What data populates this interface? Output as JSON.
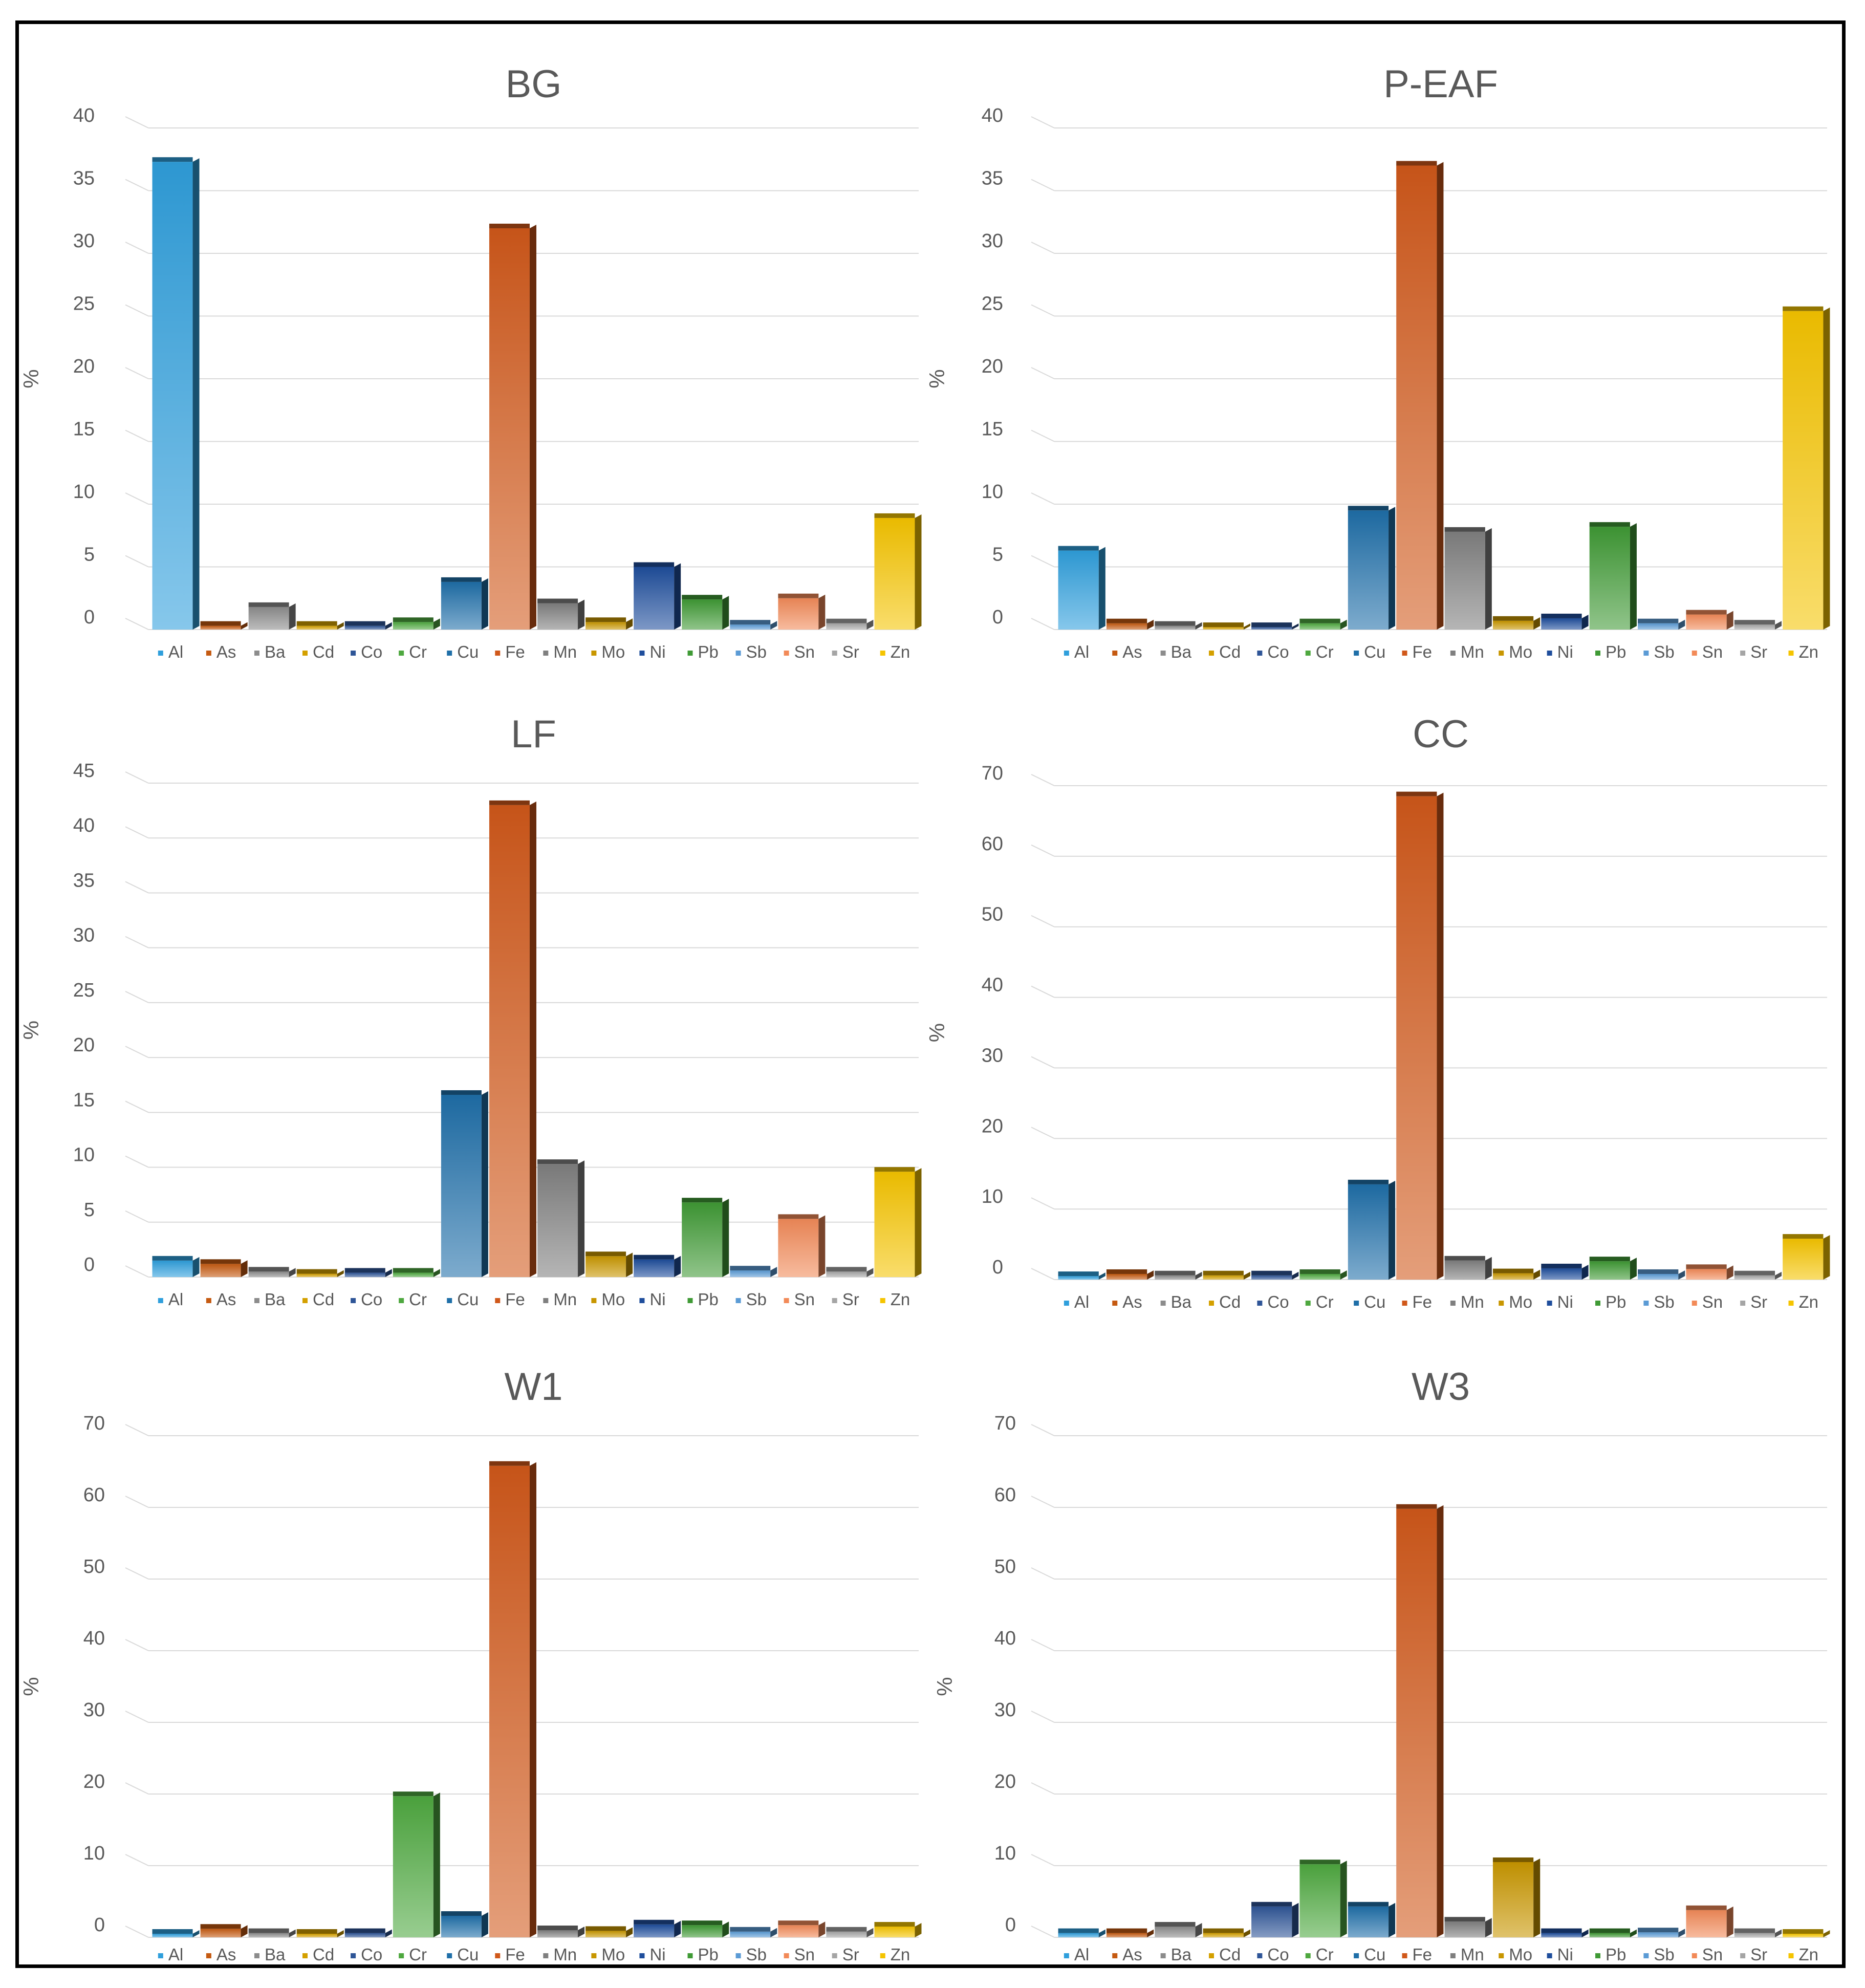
{
  "chart_data": [
    {
      "type": "bar",
      "title": "BG",
      "xlabel": "",
      "ylabel": "%",
      "ylim": [
        0,
        40
      ],
      "yticks": [
        0,
        5,
        10,
        15,
        20,
        25,
        30,
        35,
        40
      ],
      "categories": [
        "Al",
        "As",
        "Ba",
        "Cd",
        "Co",
        "Cr",
        "Cu",
        "Fe",
        "Mn",
        "Mo",
        "Ni",
        "Pb",
        "Sb",
        "Sn",
        "Sr",
        "Zn"
      ],
      "values": [
        37.3,
        0.3,
        1.8,
        0.3,
        0.3,
        0.6,
        3.8,
        32.0,
        2.1,
        0.6,
        5.0,
        2.4,
        0.4,
        2.5,
        0.5,
        8.9
      ],
      "legend": "bottom",
      "grid": true
    },
    {
      "type": "bar",
      "title": "P-EAF",
      "xlabel": "",
      "ylabel": "%",
      "ylim": [
        0,
        40
      ],
      "yticks": [
        0,
        5,
        10,
        15,
        20,
        25,
        30,
        35,
        40
      ],
      "categories": [
        "Al",
        "As",
        "Ba",
        "Cd",
        "Co",
        "Cr",
        "Cu",
        "Fe",
        "Mn",
        "Mo",
        "Ni",
        "Pb",
        "Sb",
        "Sn",
        "Sr",
        "Zn"
      ],
      "values": [
        6.3,
        0.5,
        0.3,
        0.2,
        0.2,
        0.5,
        9.5,
        37.0,
        7.8,
        0.7,
        0.9,
        8.2,
        0.5,
        1.2,
        0.4,
        25.4
      ],
      "legend": "bottom",
      "grid": true
    },
    {
      "type": "bar",
      "title": "LF",
      "xlabel": "",
      "ylabel": "%",
      "ylim": [
        0,
        45
      ],
      "yticks": [
        0,
        5,
        10,
        15,
        20,
        25,
        30,
        35,
        40,
        45
      ],
      "categories": [
        "Al",
        "As",
        "Ba",
        "Cd",
        "Co",
        "Cr",
        "Cu",
        "Fe",
        "Mn",
        "Mo",
        "Ni",
        "Pb",
        "Sb",
        "Sn",
        "Sr",
        "Zn"
      ],
      "values": [
        1.5,
        1.2,
        0.5,
        0.3,
        0.4,
        0.4,
        16.6,
        43.0,
        10.3,
        1.9,
        1.6,
        6.8,
        0.6,
        5.3,
        0.5,
        9.6
      ],
      "legend": "bottom",
      "grid": true
    },
    {
      "type": "bar",
      "title": "CC",
      "xlabel": "",
      "ylabel": "%",
      "ylim": [
        0,
        70
      ],
      "yticks": [
        0,
        10,
        20,
        30,
        40,
        50,
        60,
        70
      ],
      "categories": [
        "Al",
        "As",
        "Ba",
        "Cd",
        "Co",
        "Cr",
        "Cu",
        "Fe",
        "Mn",
        "Mo",
        "Ni",
        "Pb",
        "Sb",
        "Sn",
        "Sr",
        "Zn"
      ],
      "values": [
        0.5,
        0.8,
        0.6,
        0.6,
        0.6,
        0.8,
        13.5,
        68.5,
        2.7,
        0.9,
        1.6,
        2.6,
        0.8,
        1.5,
        0.6,
        5.8
      ],
      "legend": "bottom",
      "grid": true
    },
    {
      "type": "bar",
      "title": "W1",
      "xlabel": "",
      "ylabel": "%",
      "ylim": [
        0,
        70
      ],
      "yticks": [
        0,
        10,
        20,
        30,
        40,
        50,
        60,
        70
      ],
      "categories": [
        "Al",
        "As",
        "Ba",
        "Cd",
        "Co",
        "Cr",
        "Cu",
        "Fe",
        "Mn",
        "Mo",
        "Ni",
        "Pb",
        "Sb",
        "Sn",
        "Sr",
        "Zn"
      ],
      "values": [
        0.5,
        1.2,
        0.6,
        0.5,
        0.6,
        19.7,
        3.0,
        65.8,
        1.0,
        0.9,
        1.8,
        1.7,
        0.8,
        1.7,
        0.8,
        1.5
      ],
      "legend": "bottom",
      "grid": true
    },
    {
      "type": "bar",
      "title": "W3",
      "xlabel": "",
      "ylabel": "%",
      "ylim": [
        0,
        70
      ],
      "yticks": [
        0,
        10,
        20,
        30,
        40,
        50,
        60,
        70
      ],
      "categories": [
        "Al",
        "As",
        "Ba",
        "Cd",
        "Co",
        "Cr",
        "Cu",
        "Fe",
        "Mn",
        "Mo",
        "Ni",
        "Pb",
        "Sb",
        "Sn",
        "Sr",
        "Zn"
      ],
      "values": [
        0.6,
        0.6,
        1.5,
        0.6,
        4.3,
        10.2,
        4.3,
        59.8,
        2.2,
        10.5,
        0.6,
        0.6,
        0.7,
        3.8,
        0.6,
        0.5
      ],
      "legend": "bottom",
      "grid": true
    }
  ],
  "colors": {
    "Al": "#2f9fdc",
    "As": "#c55a11",
    "Ba": "#8c8c8c",
    "Cd": "#d4a000",
    "Co": "#2e5597",
    "Cr": "#4ea83f",
    "Cu": "#1f6fa8",
    "Fe": "#d0581a",
    "Mn": "#7f7f7f",
    "Mo": "#c89600",
    "Ni": "#1f4e9c",
    "Pb": "#3f9a35",
    "Sb": "#5b9bd5",
    "Sn": "#f28a58",
    "Sr": "#a5a5a5",
    "Zn": "#f5c400"
  }
}
